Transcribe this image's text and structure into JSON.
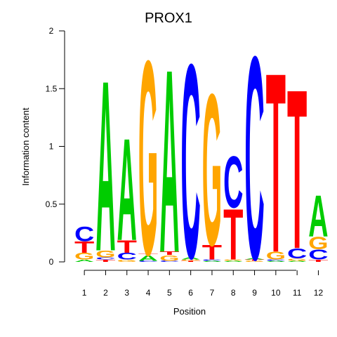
{
  "chart_data": {
    "type": "sequence-logo",
    "title": "PROX1",
    "xlabel": "Position",
    "ylabel": "Information content",
    "ylim": [
      0,
      2
    ],
    "yticks": [
      "0",
      "0.5",
      "1",
      "1.5",
      "2"
    ],
    "xticks": [
      "1",
      "2",
      "3",
      "4",
      "5",
      "6",
      "7",
      "8",
      "9",
      "10",
      "11",
      "12"
    ],
    "colors": {
      "A": "#00cc00",
      "C": "#0000ff",
      "G": "#ffa500",
      "T": "#ff0000"
    },
    "positions": [
      [
        [
          "A",
          0.02
        ],
        [
          "G",
          0.06
        ],
        [
          "T",
          0.1
        ],
        [
          "C",
          0.13
        ]
      ],
      [
        [
          "T",
          0.02
        ],
        [
          "C",
          0.02
        ],
        [
          "G",
          0.06
        ],
        [
          "A",
          1.52
        ]
      ],
      [
        [
          "G",
          0.02
        ],
        [
          "C",
          0.06
        ],
        [
          "T",
          0.11
        ],
        [
          "A",
          0.91
        ]
      ],
      [
        [
          "C",
          0.01
        ],
        [
          "A",
          0.05
        ],
        [
          "T",
          0.01
        ],
        [
          "G",
          1.73
        ]
      ],
      [
        [
          "C",
          0.01
        ],
        [
          "G",
          0.05
        ],
        [
          "T",
          0.03
        ],
        [
          "A",
          1.63
        ]
      ],
      [
        [
          "T",
          0.01
        ],
        [
          "G",
          0.01
        ],
        [
          "A",
          0.02
        ],
        [
          "C",
          1.73
        ]
      ],
      [
        [
          "A",
          0.01
        ],
        [
          "C",
          0.01
        ],
        [
          "T",
          0.13
        ],
        [
          "G",
          1.35
        ]
      ],
      [
        [
          "A",
          0.01
        ],
        [
          "G",
          0.01
        ],
        [
          "T",
          0.45
        ],
        [
          "C",
          0.46
        ]
      ],
      [
        [
          "G",
          0.01
        ],
        [
          "T",
          0.01
        ],
        [
          "A",
          0.01
        ],
        [
          "C",
          1.81
        ]
      ],
      [
        [
          "A",
          0.01
        ],
        [
          "C",
          0.01
        ],
        [
          "G",
          0.07
        ],
        [
          "T",
          1.6
        ]
      ],
      [
        [
          "A",
          0.01
        ],
        [
          "G",
          0.02
        ],
        [
          "C",
          0.09
        ],
        [
          "T",
          1.42
        ]
      ],
      [
        [
          "T",
          0.02
        ],
        [
          "C",
          0.09
        ],
        [
          "G",
          0.11
        ],
        [
          "A",
          0.37
        ]
      ]
    ]
  }
}
